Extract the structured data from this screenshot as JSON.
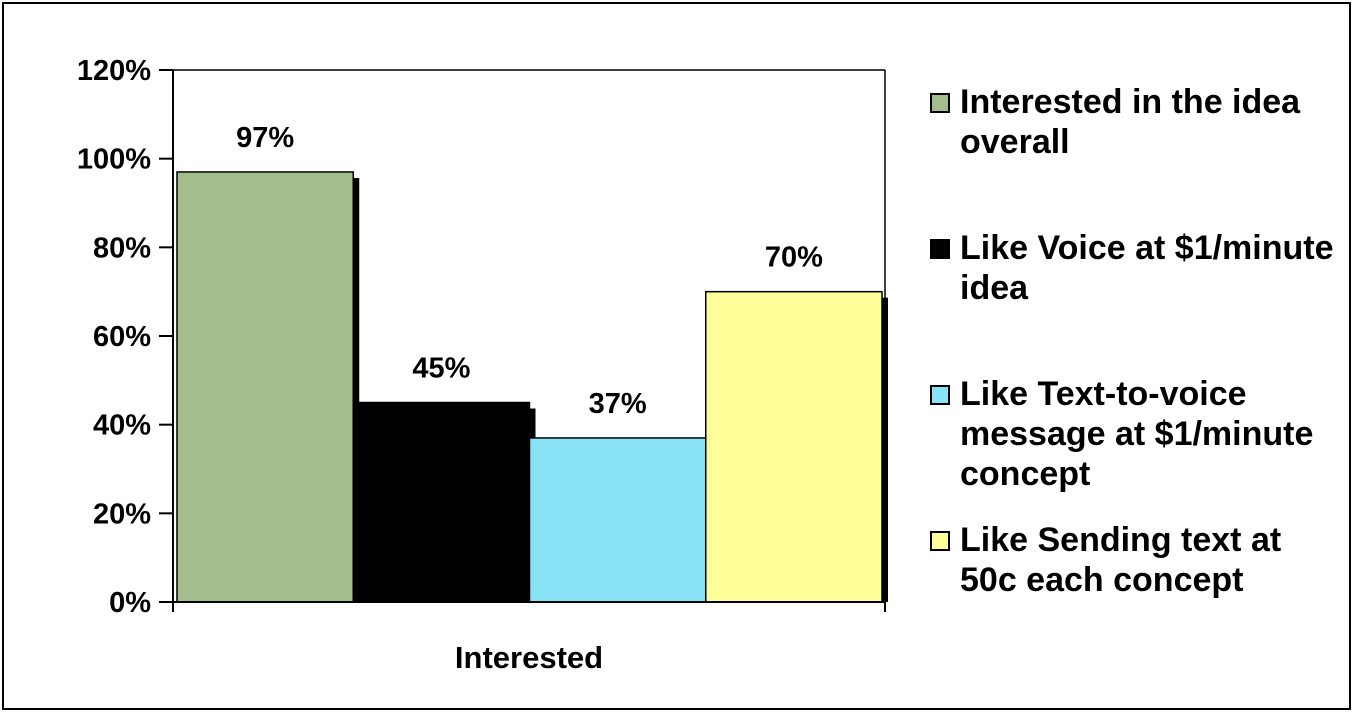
{
  "chart_data": {
    "type": "bar",
    "categories": [
      "Interested"
    ],
    "series": [
      {
        "name": "Interested in the idea overall",
        "values": [
          97
        ],
        "color": "#a3be8c",
        "value_label": "97%"
      },
      {
        "name": "Like Voice at $1/minute idea",
        "values": [
          45
        ],
        "color": "#000000",
        "value_label": "45%"
      },
      {
        "name": "Like Text-to-voice message at $1/minute concept",
        "values": [
          37
        ],
        "color": "#87e3f5",
        "value_label": "37%"
      },
      {
        "name": "Like Sending text at 50c each concept",
        "values": [
          70
        ],
        "color": "#ffff99",
        "value_label": "70%"
      }
    ],
    "title": "",
    "xlabel": "",
    "ylabel": "",
    "ylim": [
      0,
      120
    ],
    "yticks": [
      "0%",
      "20%",
      "40%",
      "60%",
      "80%",
      "100%",
      "120%"
    ],
    "grid": false,
    "legend_position": "right"
  }
}
